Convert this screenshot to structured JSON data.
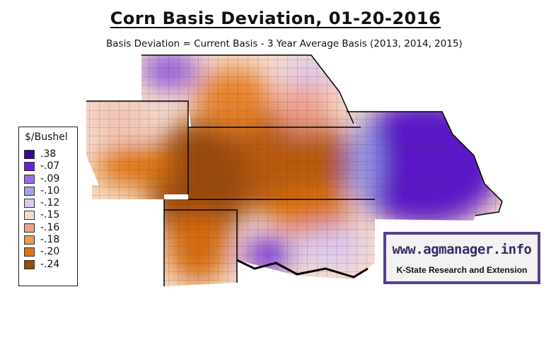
{
  "title": "Corn Basis Deviation, 01-20-2016",
  "subtitle": "Basis Deviation = Current Basis - 3 Year Average Basis (2013, 2014, 2015)",
  "legend": {
    "title": "$/Bushel",
    "items": [
      {
        "label": ".38",
        "color": "#3b0a8c"
      },
      {
        "label": "-.07",
        "color": "#6a20d8"
      },
      {
        "label": "-.09",
        "color": "#9a6ae8"
      },
      {
        "label": "-.10",
        "color": "#9fa4f0"
      },
      {
        "label": "-.12",
        "color": "#dcc8f2"
      },
      {
        "label": "-.15",
        "color": "#f6dccc"
      },
      {
        "label": "-.16",
        "color": "#f0a08c"
      },
      {
        "label": "-.18",
        "color": "#f09a50"
      },
      {
        "label": "-.20",
        "color": "#e07410"
      },
      {
        "label": "-.24",
        "color": "#9a4a0a"
      }
    ]
  },
  "logo": {
    "url": "www.agmanager.info",
    "subtitle": "K-State Research and Extension"
  },
  "colors": {
    "border": "#000000",
    "county_lines": "#555555",
    "logo_frame": "#5a3e8c"
  }
}
